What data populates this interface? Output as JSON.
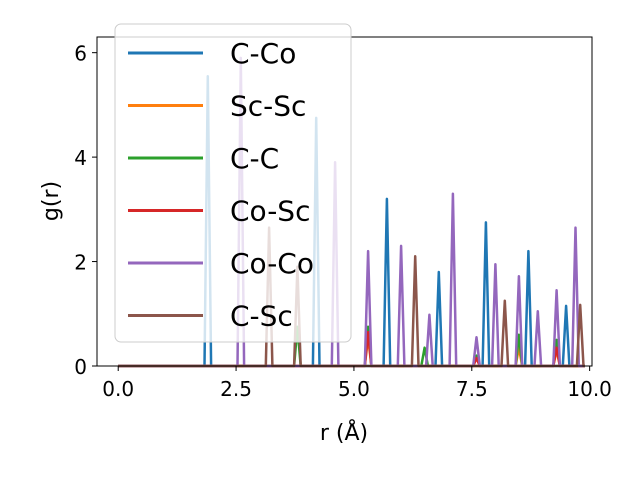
{
  "chart_data": {
    "type": "line",
    "xlabel": "r (Å)",
    "ylabel": "g(r)",
    "xlim": [
      -0.45,
      10.05
    ],
    "ylim": [
      0,
      6.3
    ],
    "xticks": [
      0.0,
      2.5,
      5.0,
      7.5,
      10.0
    ],
    "xtick_labels": [
      "0.0",
      "2.5",
      "5.0",
      "7.5",
      "10.0"
    ],
    "yticks": [
      0,
      2,
      4,
      6
    ],
    "ytick_labels": [
      "0",
      "2",
      "4",
      "6"
    ],
    "legend_position": "top-left",
    "series": [
      {
        "name": "C-Co",
        "color": "#1f77b4",
        "peaks": [
          [
            1.9,
            5.55
          ],
          [
            4.2,
            4.75
          ],
          [
            5.7,
            3.2
          ],
          [
            6.8,
            1.8
          ],
          [
            7.8,
            2.75
          ],
          [
            8.7,
            2.2
          ],
          [
            9.5,
            1.15
          ]
        ]
      },
      {
        "name": "Sc-Sc",
        "color": "#ff7f0e",
        "peaks": [
          [
            5.3,
            0.55
          ],
          [
            8.5,
            0.35
          ],
          [
            9.3,
            0.3
          ]
        ]
      },
      {
        "name": "C-C",
        "color": "#2ca02c",
        "peaks": [
          [
            3.8,
            0.75
          ],
          [
            5.3,
            0.75
          ],
          [
            6.5,
            0.35
          ],
          [
            7.6,
            0.2
          ],
          [
            8.5,
            0.6
          ],
          [
            9.3,
            0.5
          ]
        ]
      },
      {
        "name": "Co-Sc",
        "color": "#d62728",
        "peaks": [
          [
            5.3,
            0.65
          ],
          [
            7.6,
            0.15
          ],
          [
            9.3,
            0.35
          ]
        ]
      },
      {
        "name": "Co-Co",
        "color": "#9467bd",
        "peaks": [
          [
            2.6,
            5.9
          ],
          [
            4.6,
            3.9
          ],
          [
            5.3,
            2.2
          ],
          [
            6.0,
            2.3
          ],
          [
            6.6,
            0.98
          ],
          [
            7.1,
            3.3
          ],
          [
            7.6,
            0.55
          ],
          [
            8.0,
            1.95
          ],
          [
            8.5,
            1.72
          ],
          [
            8.9,
            1.05
          ],
          [
            9.3,
            1.45
          ],
          [
            9.7,
            2.65
          ]
        ]
      },
      {
        "name": "C-Sc",
        "color": "#8c564b",
        "peaks": [
          [
            3.2,
            2.65
          ],
          [
            3.8,
            1.9
          ],
          [
            6.3,
            2.1
          ],
          [
            8.2,
            1.25
          ],
          [
            9.8,
            1.17
          ]
        ]
      }
    ]
  }
}
